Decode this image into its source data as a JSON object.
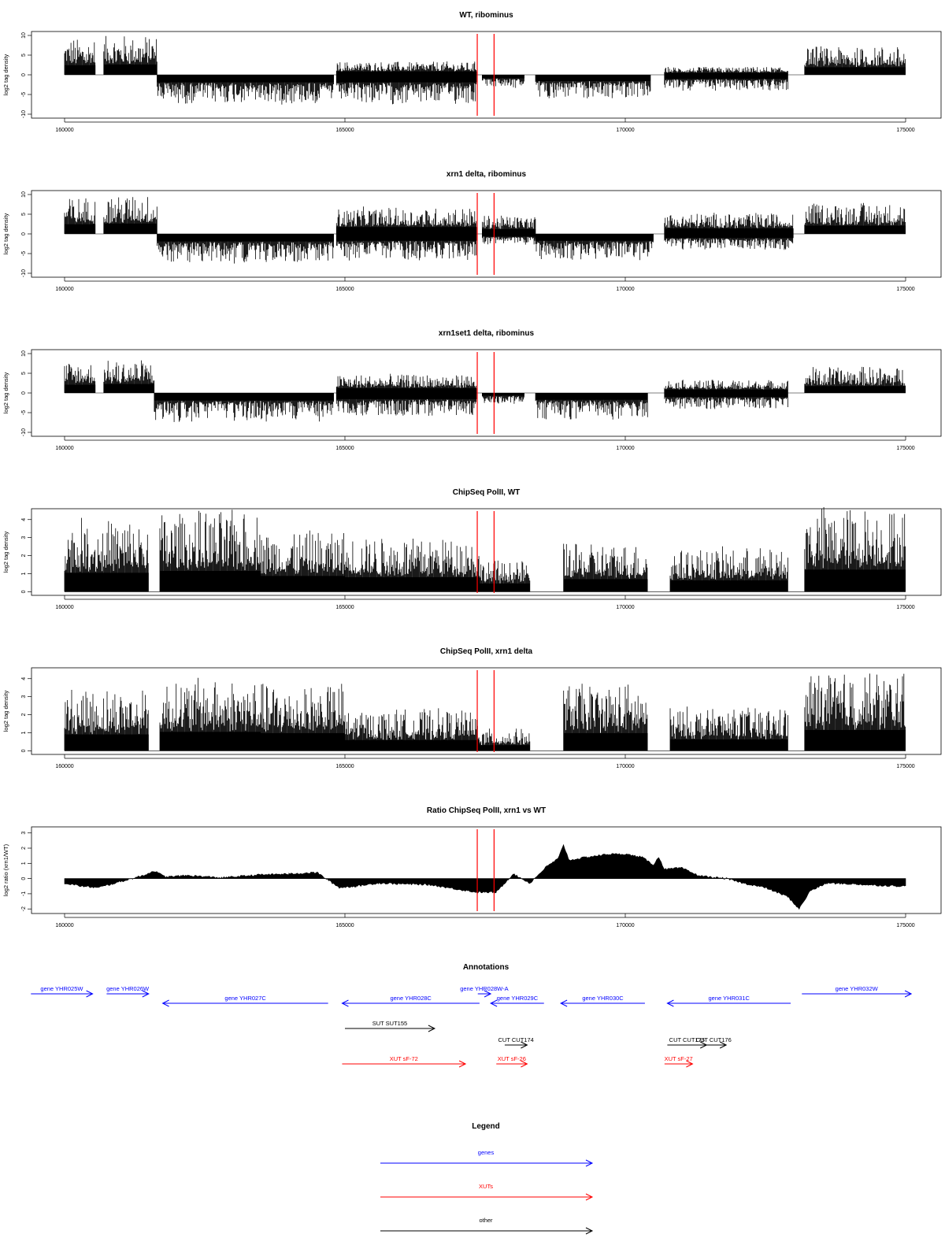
{
  "colors": {
    "gene": "#0000ff",
    "xut": "#ff0000",
    "other": "#000000",
    "marker": "#ff0000",
    "bars": "#000000"
  },
  "chart_data": [
    {
      "type": "bar",
      "title": "WT, ribominus",
      "ylabel": "log2 tag density",
      "xlim": [
        160000,
        175000
      ],
      "ylim": [
        -11,
        11
      ],
      "yticks": [
        "-10",
        "-5",
        "0",
        "5",
        "10"
      ],
      "xticks": [
        "160000",
        "165000",
        "170000",
        "175000"
      ],
      "markers": [
        167360,
        167660
      ],
      "segments": [
        {
          "start": 160000,
          "end": 160550,
          "level": 7,
          "sign": 1
        },
        {
          "start": 160700,
          "end": 161650,
          "level": 7.5,
          "sign": 1
        },
        {
          "start": 161650,
          "end": 164800,
          "level": 5.5,
          "sign": -1
        },
        {
          "start": 164850,
          "end": 167350,
          "level": 5.5,
          "sign": -1
        },
        {
          "start": 164850,
          "end": 167350,
          "level": 2.5,
          "sign": 1
        },
        {
          "start": 167450,
          "end": 168200,
          "level": 2.5,
          "sign": -1
        },
        {
          "start": 168400,
          "end": 170450,
          "level": 4.5,
          "sign": -1
        },
        {
          "start": 170700,
          "end": 172900,
          "level": 3,
          "sign": -1
        },
        {
          "start": 170700,
          "end": 172900,
          "level": 1.5,
          "sign": 1
        },
        {
          "start": 173200,
          "end": 175000,
          "level": 5.5,
          "sign": 1
        }
      ]
    },
    {
      "type": "bar",
      "title": "xrn1 delta, ribominus",
      "ylabel": "log2 tag density",
      "xlim": [
        160000,
        175000
      ],
      "ylim": [
        -11,
        11
      ],
      "yticks": [
        "-10",
        "-5",
        "0",
        "5",
        "10"
      ],
      "xticks": [
        "160000",
        "165000",
        "170000",
        "175000"
      ],
      "markers": [
        167360,
        167660
      ],
      "segments": [
        {
          "start": 160000,
          "end": 160550,
          "level": 7,
          "sign": 1
        },
        {
          "start": 160700,
          "end": 161650,
          "level": 7.5,
          "sign": 1
        },
        {
          "start": 161650,
          "end": 164800,
          "level": 5.5,
          "sign": -1
        },
        {
          "start": 164850,
          "end": 167350,
          "level": 5,
          "sign": -1
        },
        {
          "start": 164850,
          "end": 167350,
          "level": 5,
          "sign": 1
        },
        {
          "start": 167450,
          "end": 168400,
          "level": 3.5,
          "sign": 1
        },
        {
          "start": 167450,
          "end": 168400,
          "level": 2,
          "sign": -1
        },
        {
          "start": 168400,
          "end": 170500,
          "level": 5,
          "sign": -1
        },
        {
          "start": 170700,
          "end": 173000,
          "level": 4,
          "sign": 1
        },
        {
          "start": 170700,
          "end": 173000,
          "level": 3,
          "sign": -1
        },
        {
          "start": 173200,
          "end": 175000,
          "level": 6,
          "sign": 1
        }
      ]
    },
    {
      "type": "bar",
      "title": "xrn1set1 delta, ribominus",
      "ylabel": "log2 tag density",
      "xlim": [
        160000,
        175000
      ],
      "ylim": [
        -11,
        11
      ],
      "yticks": [
        "-10",
        "-5",
        "0",
        "5",
        "10"
      ],
      "xticks": [
        "160000",
        "165000",
        "170000",
        "175000"
      ],
      "markers": [
        167360,
        167660
      ],
      "segments": [
        {
          "start": 160000,
          "end": 160550,
          "level": 6,
          "sign": 1
        },
        {
          "start": 160700,
          "end": 161600,
          "level": 6.5,
          "sign": 1
        },
        {
          "start": 161600,
          "end": 164800,
          "level": 5.5,
          "sign": -1
        },
        {
          "start": 164850,
          "end": 167350,
          "level": 4.5,
          "sign": -1
        },
        {
          "start": 164850,
          "end": 167350,
          "level": 3.5,
          "sign": 1
        },
        {
          "start": 167450,
          "end": 168200,
          "level": 2,
          "sign": -1
        },
        {
          "start": 168400,
          "end": 170400,
          "level": 5,
          "sign": -1
        },
        {
          "start": 170700,
          "end": 172900,
          "level": 3,
          "sign": -1
        },
        {
          "start": 170700,
          "end": 172900,
          "level": 2.5,
          "sign": 1
        },
        {
          "start": 173200,
          "end": 175000,
          "level": 5,
          "sign": 1
        }
      ]
    },
    {
      "type": "bar",
      "title": "ChipSeq PolII, WT",
      "ylabel": "log2 tag density",
      "xlim": [
        160000,
        175000
      ],
      "ylim": [
        -0.2,
        4.6
      ],
      "yticks": [
        "0",
        "1",
        "2",
        "3",
        "4"
      ],
      "xticks": [
        "160000",
        "165000",
        "170000",
        "175000"
      ],
      "markers": [
        167360,
        167660
      ],
      "segments": [
        {
          "start": 160000,
          "end": 161500,
          "level": 3,
          "sign": 1
        },
        {
          "start": 161700,
          "end": 163500,
          "level": 3.3,
          "sign": 1
        },
        {
          "start": 163500,
          "end": 165000,
          "level": 2.5,
          "sign": 1
        },
        {
          "start": 165000,
          "end": 167400,
          "level": 2.3,
          "sign": 1
        },
        {
          "start": 167400,
          "end": 168300,
          "level": 1.3,
          "sign": 1
        },
        {
          "start": 168900,
          "end": 170400,
          "level": 2,
          "sign": 1
        },
        {
          "start": 170800,
          "end": 172900,
          "level": 1.8,
          "sign": 1
        },
        {
          "start": 173200,
          "end": 175000,
          "level": 3.5,
          "sign": 1
        }
      ]
    },
    {
      "type": "bar",
      "title": "ChipSeq PolII, xrn1 delta",
      "ylabel": "log2 tag density",
      "xlim": [
        160000,
        175000
      ],
      "ylim": [
        -0.2,
        4.6
      ],
      "yticks": [
        "0",
        "1",
        "2",
        "3",
        "4"
      ],
      "xticks": [
        "160000",
        "165000",
        "170000",
        "175000"
      ],
      "markers": [
        167360,
        167660
      ],
      "segments": [
        {
          "start": 160000,
          "end": 161500,
          "level": 2.6,
          "sign": 1
        },
        {
          "start": 161700,
          "end": 163500,
          "level": 3,
          "sign": 1
        },
        {
          "start": 163500,
          "end": 165000,
          "level": 2.8,
          "sign": 1
        },
        {
          "start": 165000,
          "end": 167400,
          "level": 1.7,
          "sign": 1
        },
        {
          "start": 167400,
          "end": 168300,
          "level": 0.9,
          "sign": 1
        },
        {
          "start": 168900,
          "end": 170400,
          "level": 2.8,
          "sign": 1
        },
        {
          "start": 170800,
          "end": 172900,
          "level": 1.8,
          "sign": 1
        },
        {
          "start": 173200,
          "end": 175000,
          "level": 3.3,
          "sign": 1
        }
      ]
    },
    {
      "type": "area",
      "title": "Ratio ChipSeq PolII, xrn1 vs WT",
      "ylabel": "log2 ratio (xrn1/WT)",
      "xlim": [
        160000,
        175000
      ],
      "ylim": [
        -2.3,
        3.4
      ],
      "yticks": [
        "-2",
        "-1",
        "0",
        "1",
        "2",
        "3"
      ],
      "xticks": [
        "160000",
        "165000",
        "170000",
        "175000"
      ],
      "markers": [
        167360,
        167660
      ],
      "x": [
        160000,
        160300,
        160600,
        161000,
        161400,
        161600,
        161800,
        162200,
        162800,
        163500,
        164000,
        164500,
        164900,
        165200,
        165600,
        166000,
        166500,
        167000,
        167350,
        167700,
        168000,
        168300,
        168600,
        168800,
        168900,
        169000,
        169300,
        169700,
        170000,
        170300,
        170500,
        170600,
        170700,
        171000,
        171300,
        171500,
        171800,
        172100,
        172500,
        172900,
        173100,
        173300,
        173600,
        174000,
        174500,
        175000
      ],
      "y": [
        -0.3,
        -0.5,
        -0.6,
        -0.2,
        0.2,
        0.5,
        0.1,
        0.2,
        0.05,
        0.25,
        0.3,
        0.4,
        -0.6,
        -0.5,
        -0.3,
        -0.35,
        -0.4,
        -0.7,
        -0.9,
        -0.9,
        0.3,
        -0.3,
        0.8,
        1.3,
        2.2,
        1.2,
        1.4,
        1.6,
        1.6,
        1.4,
        0.9,
        1.4,
        0.6,
        0.7,
        0.2,
        0.1,
        0.0,
        -0.3,
        -0.6,
        -1.2,
        -2.0,
        -0.8,
        -0.3,
        -0.35,
        -0.45,
        -0.5
      ]
    }
  ],
  "annotations": {
    "title": "Annotations",
    "features": [
      {
        "label": "gene YHR025W",
        "category": "gene",
        "start": 159400,
        "end": 160500,
        "strand": "+",
        "row": 0
      },
      {
        "label": "gene YHR026W",
        "category": "gene",
        "start": 160750,
        "end": 161500,
        "strand": "+",
        "row": 0
      },
      {
        "label": "gene YHR027C",
        "category": "gene",
        "start": 161750,
        "end": 164700,
        "strand": "-",
        "row": 1
      },
      {
        "label": "gene YHR028C",
        "category": "gene",
        "start": 164950,
        "end": 167400,
        "strand": "-",
        "row": 1
      },
      {
        "label": "gene YHR028W-A",
        "category": "gene",
        "start": 167370,
        "end": 167600,
        "strand": "+",
        "row": 0
      },
      {
        "label": "gene YHR029C",
        "category": "gene",
        "start": 167600,
        "end": 168550,
        "strand": "-",
        "row": 1
      },
      {
        "label": "gene YHR030C",
        "category": "gene",
        "start": 168850,
        "end": 170350,
        "strand": "-",
        "row": 1
      },
      {
        "label": "gene YHR031C",
        "category": "gene",
        "start": 170750,
        "end": 172950,
        "strand": "-",
        "row": 1
      },
      {
        "label": "gene YHR032W",
        "category": "gene",
        "start": 173150,
        "end": 175100,
        "strand": "+",
        "row": 0
      },
      {
        "label": "SUT SUT155",
        "category": "other",
        "start": 165000,
        "end": 166600,
        "strand": "+",
        "row": 2
      },
      {
        "label": "CUT CUT174",
        "category": "other",
        "start": 167850,
        "end": 168250,
        "strand": "+",
        "row": 3
      },
      {
        "label": "CUT CUT175",
        "category": "other",
        "start": 170750,
        "end": 171450,
        "strand": "+",
        "row": 3
      },
      {
        "label": "CUT CUT176",
        "category": "other",
        "start": 171350,
        "end": 171800,
        "strand": "+",
        "row": 3
      },
      {
        "label": "XUT sF-72",
        "category": "xut",
        "start": 164950,
        "end": 167150,
        "strand": "+",
        "row": 4
      },
      {
        "label": "XUT sF-26",
        "category": "xut",
        "start": 167700,
        "end": 168250,
        "strand": "+",
        "row": 4
      },
      {
        "label": "XUT sF-27",
        "category": "xut",
        "start": 170700,
        "end": 171200,
        "strand": "+",
        "row": 4
      }
    ]
  },
  "legend": {
    "title": "Legend",
    "items": [
      {
        "label": "genes",
        "category": "gene"
      },
      {
        "label": "XUTs",
        "category": "xut"
      },
      {
        "label": "other",
        "category": "other"
      }
    ]
  }
}
